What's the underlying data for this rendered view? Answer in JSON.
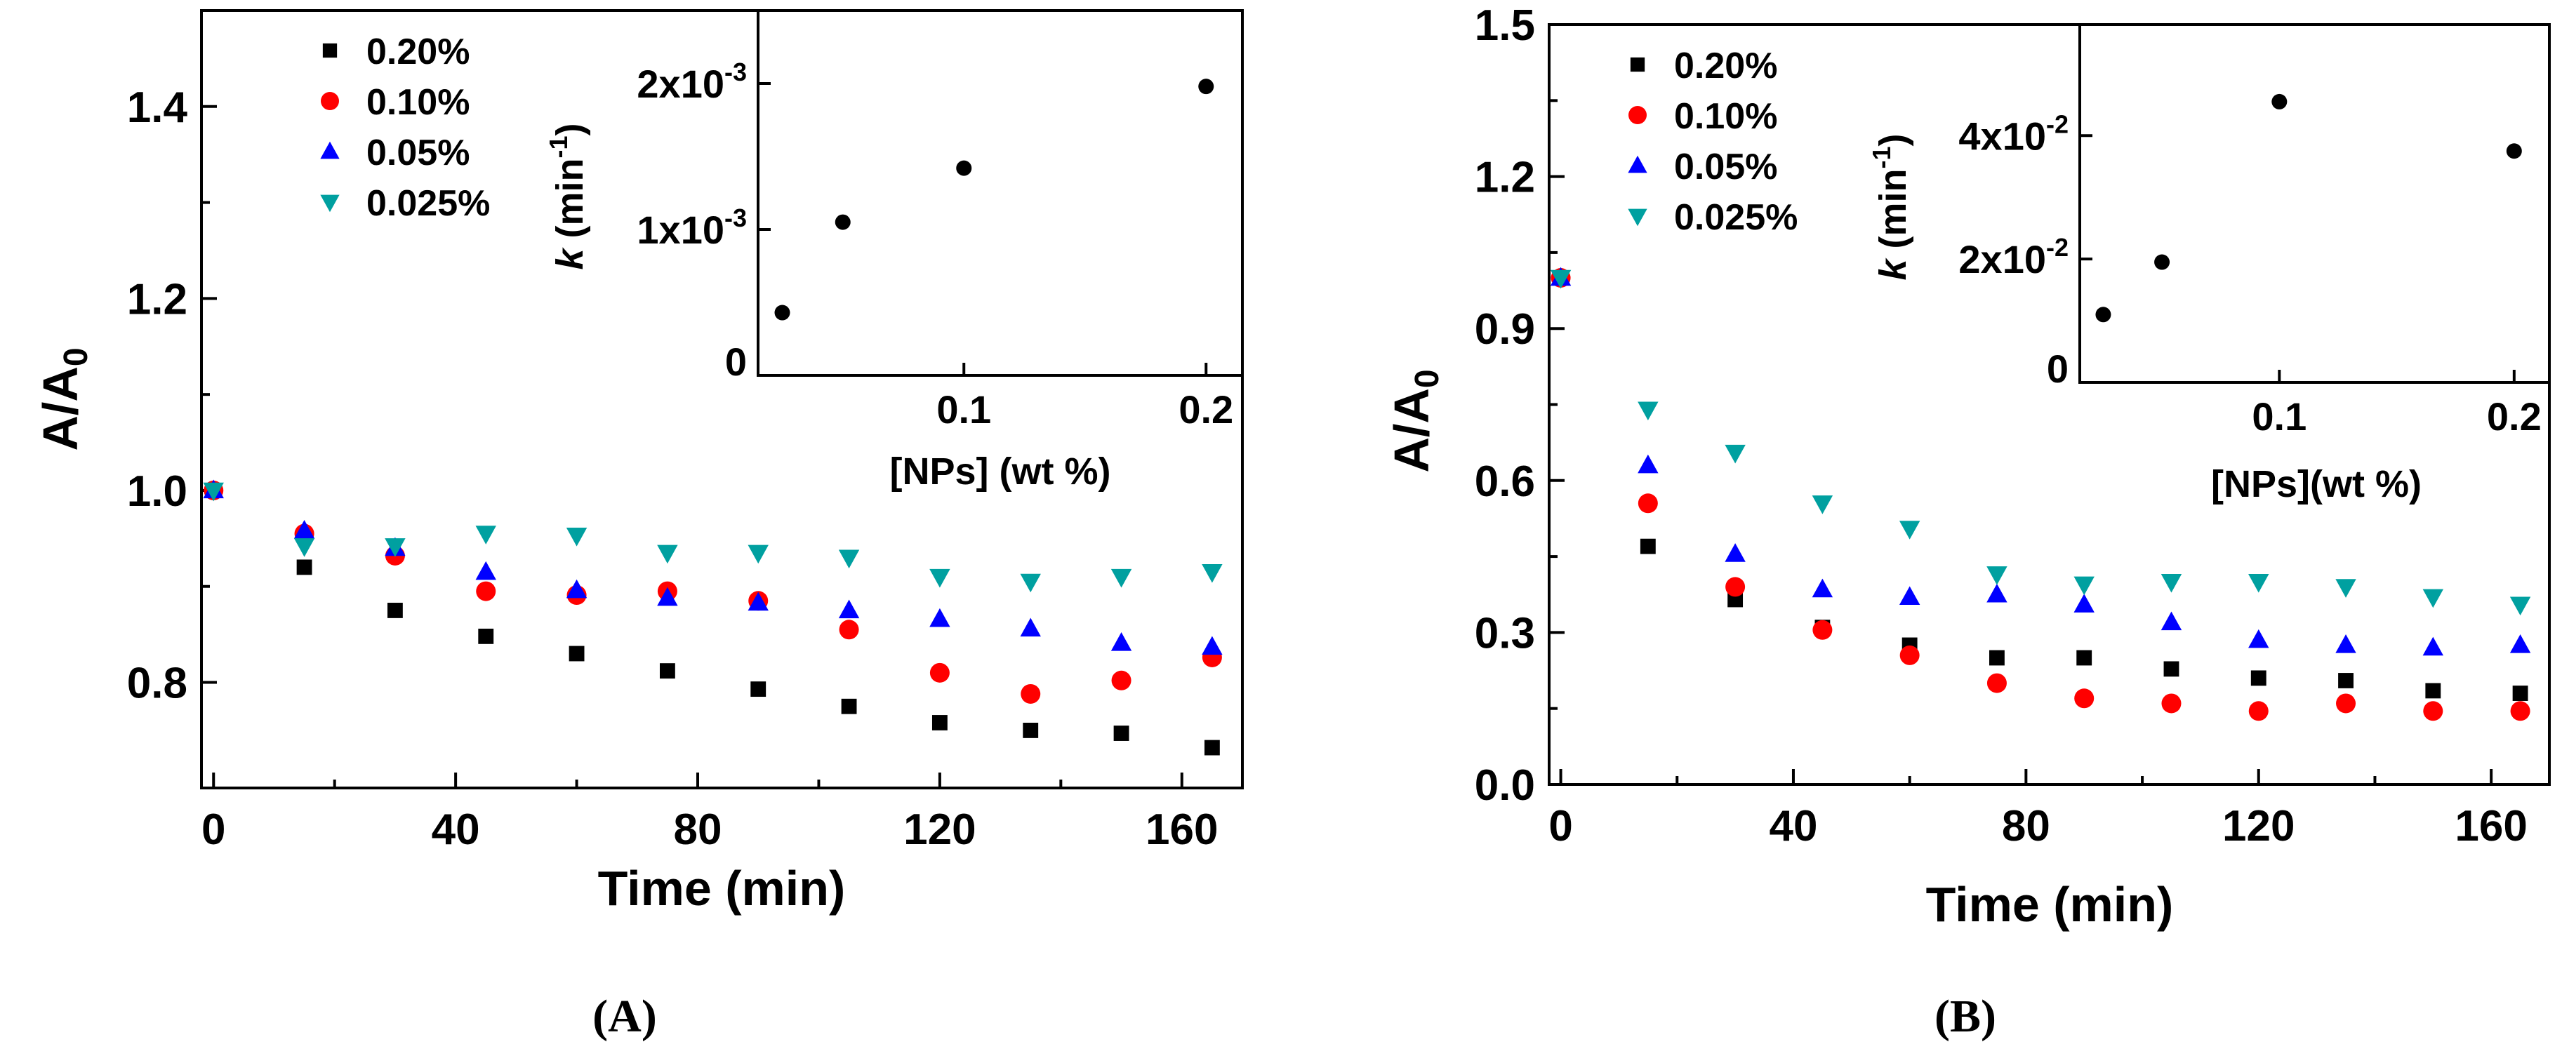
{
  "panels": [
    {
      "id": "A",
      "caption_open": "(",
      "caption_letter": "A",
      "caption_close": ")",
      "chart_data": {
        "type": "scatter",
        "title": "",
        "xlabel": "Time (min)",
        "ylabel_main": "A/A",
        "ylabel_sub": "0",
        "xlim": [
          -2,
          170
        ],
        "ylim": [
          0.69,
          1.5
        ],
        "xticks": [
          0,
          40,
          80,
          120,
          160
        ],
        "xtick_labels": [
          "0",
          "40",
          "80",
          "120",
          "160"
        ],
        "yticks": [
          0.8,
          1.0,
          1.2,
          1.4
        ],
        "ytick_labels": [
          "0.8",
          "1.0",
          "1.2",
          "1.4"
        ],
        "x": [
          0,
          15,
          30,
          45,
          60,
          75,
          90,
          105,
          120,
          135,
          150,
          165
        ],
        "series": [
          {
            "name": "0.20%",
            "marker": "square",
            "color": "#000000",
            "values": [
              1.0,
              0.92,
              0.875,
              0.848,
              0.83,
              0.812,
              0.793,
              0.775,
              0.758,
              0.75,
              0.747,
              0.732
            ]
          },
          {
            "name": "0.10%",
            "marker": "circle",
            "color": "#ff0000",
            "values": [
              1.0,
              0.955,
              0.932,
              0.895,
              0.891,
              0.895,
              0.885,
              0.855,
              0.81,
              0.788,
              0.802,
              0.826
            ]
          },
          {
            "name": "0.05%",
            "marker": "triangle-up",
            "color": "#0000ff",
            "values": [
              1.0,
              0.958,
              0.94,
              0.915,
              0.896,
              0.888,
              0.883,
              0.875,
              0.866,
              0.856,
              0.841,
              0.837
            ]
          },
          {
            "name": "0.025%",
            "marker": "triangle-down",
            "color": "#00a0a0",
            "values": [
              1.0,
              0.942,
              0.942,
              0.955,
              0.953,
              0.935,
              0.935,
              0.93,
              0.91,
              0.905,
              0.91,
              0.915
            ]
          }
        ],
        "legend_position": "top-left",
        "inset": {
          "type": "scatter",
          "xlabel": "[NPs] (wt %)",
          "ylabel_italic": "k",
          "ylabel_rest": " (min",
          "ylabel_sup": "-1",
          "ylabel_close": ")",
          "xlim": [
            0.015,
            0.215
          ],
          "ylim": [
            0,
            0.0025
          ],
          "xticks": [
            0.1,
            0.2
          ],
          "xtick_labels": [
            "0.1",
            "0.2"
          ],
          "yticks": [
            0,
            0.001,
            0.002
          ],
          "ytick_labels": [
            {
              "main": "0",
              "sup": ""
            },
            {
              "main": "1x10",
              "sup": "-3"
            },
            {
              "main": "2x10",
              "sup": "-3"
            }
          ],
          "x": [
            0.025,
            0.05,
            0.1,
            0.2
          ],
          "values": [
            0.00043,
            0.00105,
            0.00142,
            0.00198
          ],
          "color": "#000000"
        }
      }
    },
    {
      "id": "B",
      "caption_open": "(",
      "caption_letter": "B",
      "caption_close": ")",
      "chart_data": {
        "type": "scatter",
        "title": "",
        "xlabel": "Time (min)",
        "ylabel_main": "A/A",
        "ylabel_sub": "0",
        "xlim": [
          -2,
          170
        ],
        "ylim": [
          0,
          1.5
        ],
        "xticks": [
          0,
          40,
          80,
          120,
          160
        ],
        "xtick_labels": [
          "0",
          "40",
          "80",
          "120",
          "160"
        ],
        "yticks": [
          0.0,
          0.3,
          0.6,
          0.9,
          1.2,
          1.5
        ],
        "ytick_labels": [
          "0.0",
          "0.3",
          "0.6",
          "0.9",
          "1.2",
          "1.5"
        ],
        "x": [
          0,
          15,
          30,
          45,
          60,
          75,
          90,
          105,
          120,
          135,
          150,
          165
        ],
        "series": [
          {
            "name": "0.20%",
            "marker": "square",
            "color": "#000000",
            "values": [
              1.0,
              0.47,
              0.365,
              0.31,
              0.275,
              0.25,
              0.25,
              0.228,
              0.21,
              0.205,
              0.185,
              0.18
            ]
          },
          {
            "name": "0.10%",
            "marker": "circle",
            "color": "#ff0000",
            "values": [
              1.0,
              0.555,
              0.39,
              0.305,
              0.255,
              0.2,
              0.17,
              0.16,
              0.145,
              0.16,
              0.145,
              0.145
            ]
          },
          {
            "name": "0.05%",
            "marker": "triangle-up",
            "color": "#0000ff",
            "values": [
              1.0,
              0.63,
              0.455,
              0.385,
              0.37,
              0.375,
              0.355,
              0.32,
              0.285,
              0.275,
              0.27,
              0.275
            ]
          },
          {
            "name": "0.025%",
            "marker": "triangle-down",
            "color": "#00a0a0",
            "values": [
              1.0,
              0.74,
              0.655,
              0.555,
              0.505,
              0.415,
              0.395,
              0.4,
              0.4,
              0.39,
              0.37,
              0.355
            ]
          }
        ],
        "legend_position": "top-left",
        "inset": {
          "type": "scatter",
          "xlabel": "[NPs](wt %)",
          "ylabel_italic": "k",
          "ylabel_rest": " (min",
          "ylabel_sup": "-1",
          "ylabel_close": ")",
          "xlim": [
            0.015,
            0.215
          ],
          "ylim": [
            0,
            0.058
          ],
          "xticks": [
            0.1,
            0.2
          ],
          "xtick_labels": [
            "0.1",
            "0.2"
          ],
          "yticks": [
            0,
            0.02,
            0.04
          ],
          "ytick_labels": [
            {
              "main": "0",
              "sup": ""
            },
            {
              "main": "2x10",
              "sup": "-2"
            },
            {
              "main": "4x10",
              "sup": "-2"
            }
          ],
          "x": [
            0.025,
            0.05,
            0.1,
            0.2
          ],
          "values": [
            0.011,
            0.0195,
            0.0455,
            0.0375
          ],
          "color": "#000000"
        }
      }
    }
  ]
}
